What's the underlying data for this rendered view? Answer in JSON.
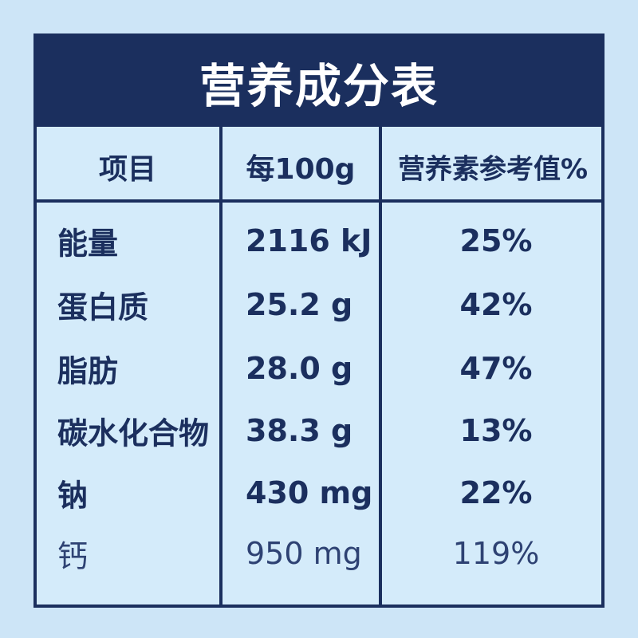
{
  "header": {
    "title": "营养成分表"
  },
  "table": {
    "columns": [
      "项目",
      "每100g",
      "营养素参考值%"
    ],
    "rows": [
      [
        "能量",
        "2116 kJ",
        "25%"
      ],
      [
        "蛋白质",
        "25.2 g",
        "42%"
      ],
      [
        "脂肪",
        "28.0 g",
        "47%"
      ],
      [
        "碳水化合物",
        "38.3 g",
        "13%"
      ],
      [
        "钠",
        "430 mg",
        "22%"
      ],
      [
        "钙",
        "950 mg",
        "119%"
      ]
    ]
  }
}
